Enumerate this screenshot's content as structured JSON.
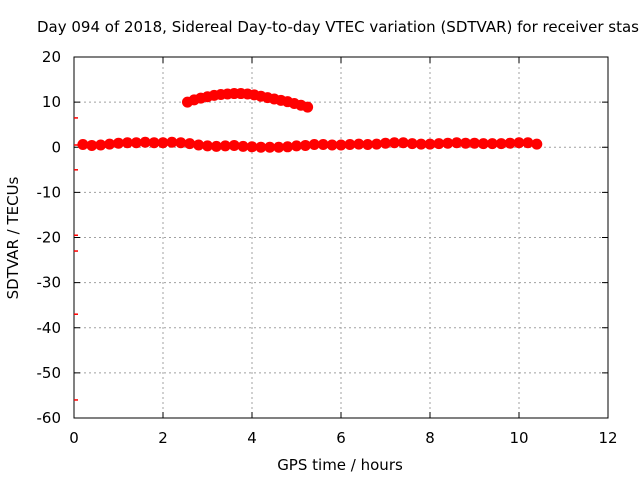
{
  "chart_data": {
    "type": "scatter",
    "title": "Day 094 of 2018, Sidereal Day-to-day VTEC variation (SDTVAR) for receiver stas",
    "xlabel": "GPS time / hours",
    "ylabel": "SDTVAR / TECUs",
    "xlim": [
      0,
      12
    ],
    "ylim": [
      -60,
      20
    ],
    "xticks": [
      0,
      2,
      4,
      6,
      8,
      10,
      12
    ],
    "yticks": [
      -60,
      -50,
      -40,
      -30,
      -20,
      -10,
      0,
      10,
      20
    ],
    "grid": true,
    "legend": "none",
    "color": "#ff0000",
    "series": [
      {
        "x": [
          0.2,
          0.4,
          0.6,
          0.8,
          1.0,
          1.2,
          1.4,
          1.6,
          1.8,
          2.0,
          2.2,
          2.4,
          2.6,
          2.8,
          3.0,
          3.2,
          3.4,
          3.6,
          3.8,
          4.0,
          4.2,
          4.4,
          4.6,
          4.8,
          5.0,
          5.2,
          5.4,
          5.6,
          5.8,
          6.0,
          6.2,
          6.4,
          6.6,
          6.8,
          7.0,
          7.2,
          7.4,
          7.6,
          7.8,
          8.0,
          8.2,
          8.4,
          8.6,
          8.8,
          9.0,
          9.2,
          9.4,
          9.6,
          9.8,
          10.0,
          10.2,
          10.4
        ],
        "y": [
          0.6,
          0.4,
          0.5,
          0.7,
          0.9,
          1.0,
          1.0,
          1.1,
          1.0,
          1.0,
          1.1,
          1.0,
          0.8,
          0.5,
          0.3,
          0.2,
          0.3,
          0.4,
          0.2,
          0.1,
          0.0,
          0.0,
          0.0,
          0.1,
          0.3,
          0.4,
          0.6,
          0.6,
          0.5,
          0.5,
          0.6,
          0.7,
          0.6,
          0.7,
          0.9,
          1.0,
          1.0,
          0.8,
          0.7,
          0.7,
          0.8,
          0.9,
          1.0,
          0.9,
          0.9,
          0.8,
          0.8,
          0.8,
          0.9,
          1.0,
          1.0,
          0.7
        ]
      },
      {
        "x": [
          2.55,
          2.7,
          2.85,
          3.0,
          3.15,
          3.3,
          3.45,
          3.6,
          3.75,
          3.9,
          4.05,
          4.2,
          4.35,
          4.5,
          4.65,
          4.8,
          4.95,
          5.1,
          5.25
        ],
        "y": [
          10.0,
          10.5,
          10.9,
          11.2,
          11.5,
          11.7,
          11.8,
          11.9,
          11.9,
          11.8,
          11.6,
          11.3,
          11.0,
          10.7,
          10.4,
          10.1,
          9.7,
          9.3,
          8.9
        ]
      },
      {
        "x": [
          0,
          0,
          0,
          0,
          0,
          0,
          0
        ],
        "y": [
          6.5,
          -5.0,
          -19.5,
          -23.0,
          -37.0,
          -56.0,
          0.5
        ]
      }
    ]
  }
}
